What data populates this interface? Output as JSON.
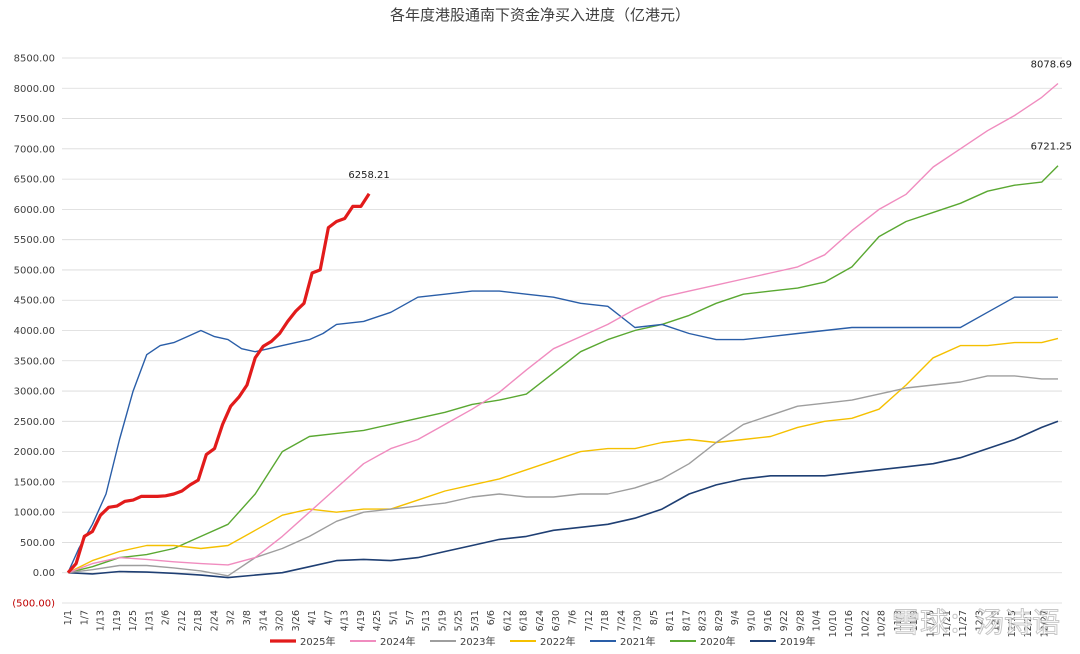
{
  "watermark": "雪球：汤诗语",
  "chart_data": {
    "type": "line",
    "title": "各年度港股通南下资金净买入进度（亿港元）",
    "xlabel": "",
    "ylabel": "",
    "ylim": [
      -500,
      8500
    ],
    "ytick_labels": [
      "(500.00)",
      "0.00",
      "500.00",
      "1000.00",
      "1500.00",
      "2000.00",
      "2500.00",
      "3000.00",
      "3500.00",
      "4000.00",
      "4500.00",
      "5000.00",
      "5500.00",
      "6000.00",
      "6500.00",
      "7000.00",
      "7500.00",
      "8000.00",
      "8500.00"
    ],
    "xtick_labels": [
      "1/1",
      "1/7",
      "1/13",
      "1/19",
      "1/25",
      "1/31",
      "2/6",
      "2/12",
      "2/18",
      "2/24",
      "3/2",
      "3/8",
      "3/14",
      "3/20",
      "3/26",
      "4/1",
      "4/7",
      "4/13",
      "4/19",
      "4/25",
      "5/1",
      "5/7",
      "5/13",
      "5/19",
      "5/25",
      "5/31",
      "6/6",
      "6/12",
      "6/18",
      "6/24",
      "6/30",
      "7/6",
      "7/12",
      "7/18",
      "7/24",
      "7/30",
      "8/5",
      "8/11",
      "8/17",
      "8/23",
      "8/29",
      "9/4",
      "9/10",
      "9/16",
      "9/22",
      "9/28",
      "10/4",
      "10/10",
      "10/16",
      "10/22",
      "10/28",
      "11/3",
      "11/9",
      "11/15",
      "11/21",
      "11/27",
      "12/3",
      "12/9",
      "12/15",
      "12/21",
      "12/27"
    ],
    "grid": true,
    "legend_position": "bottom",
    "series": [
      {
        "name": "2025年",
        "color": "#e21b1b",
        "width": 3.2,
        "x": [
          1,
          4,
          7,
          10,
          13,
          16,
          19,
          22,
          25,
          28,
          31,
          34,
          37,
          40,
          43,
          46,
          49,
          52,
          55,
          58,
          61,
          64,
          67,
          70,
          73,
          76,
          79,
          82,
          85,
          88,
          91,
          94,
          97,
          100,
          103,
          106,
          109,
          112
        ],
        "y": [
          0,
          150,
          600,
          680,
          950,
          1080,
          1100,
          1180,
          1200,
          1260,
          1260,
          1260,
          1270,
          1300,
          1350,
          1450,
          1530,
          1950,
          2050,
          2450,
          2750,
          2900,
          3100,
          3550,
          3740,
          3820,
          3950,
          4150,
          4320,
          4450,
          4950,
          5000,
          5700,
          5800,
          5850,
          6050,
          6050,
          6258.21
        ],
        "end_label": "6258.21"
      },
      {
        "name": "2024年",
        "color": "#f08cbf",
        "width": 1.4,
        "x": [
          1,
          10,
          20,
          30,
          40,
          50,
          60,
          70,
          80,
          90,
          100,
          110,
          120,
          130,
          140,
          150,
          160,
          170,
          180,
          190,
          200,
          210,
          220,
          230,
          240,
          250,
          260,
          270,
          280,
          290,
          300,
          310,
          320,
          330,
          340,
          350,
          360,
          366
        ],
        "y": [
          0,
          150,
          250,
          220,
          180,
          150,
          130,
          250,
          600,
          1000,
          1400,
          1800,
          2050,
          2200,
          2450,
          2700,
          2980,
          3350,
          3700,
          3900,
          4100,
          4350,
          4550,
          4650,
          4750,
          4850,
          4950,
          5050,
          5250,
          5650,
          6000,
          6250,
          6700,
          7000,
          7300,
          7550,
          7850,
          8078.69
        ],
        "end_label": "8078.69"
      },
      {
        "name": "2023年",
        "color": "#9e9e9e",
        "width": 1.4,
        "x": [
          1,
          10,
          20,
          30,
          40,
          50,
          60,
          70,
          80,
          90,
          100,
          110,
          120,
          130,
          140,
          150,
          160,
          170,
          180,
          190,
          200,
          210,
          220,
          230,
          240,
          250,
          260,
          270,
          280,
          290,
          300,
          310,
          320,
          330,
          340,
          350,
          360,
          366
        ],
        "y": [
          0,
          50,
          120,
          120,
          80,
          30,
          -50,
          250,
          400,
          600,
          850,
          1000,
          1050,
          1100,
          1150,
          1250,
          1300,
          1250,
          1250,
          1300,
          1300,
          1400,
          1550,
          1800,
          2150,
          2450,
          2600,
          2750,
          2800,
          2850,
          2950,
          3050,
          3100,
          3150,
          3250,
          3250,
          3200,
          3200
        ]
      },
      {
        "name": "2022年",
        "color": "#f5c000",
        "width": 1.4,
        "x": [
          1,
          10,
          20,
          30,
          40,
          50,
          60,
          70,
          80,
          90,
          100,
          110,
          120,
          130,
          140,
          150,
          160,
          170,
          180,
          190,
          200,
          210,
          220,
          230,
          240,
          250,
          260,
          270,
          280,
          290,
          300,
          310,
          320,
          330,
          340,
          350,
          360,
          366
        ],
        "y": [
          0,
          200,
          350,
          450,
          450,
          400,
          450,
          700,
          950,
          1050,
          1000,
          1050,
          1050,
          1200,
          1350,
          1450,
          1550,
          1700,
          1850,
          2000,
          2050,
          2050,
          2150,
          2200,
          2150,
          2200,
          2250,
          2400,
          2500,
          2550,
          2700,
          3100,
          3550,
          3750,
          3750,
          3800,
          3800,
          3870
        ]
      },
      {
        "name": "2021年",
        "color": "#2a5ea8",
        "width": 1.4,
        "x": [
          1,
          5,
          10,
          15,
          20,
          25,
          30,
          35,
          40,
          45,
          50,
          55,
          60,
          65,
          70,
          75,
          80,
          85,
          90,
          95,
          100,
          110,
          120,
          130,
          140,
          150,
          160,
          170,
          180,
          190,
          200,
          210,
          220,
          230,
          240,
          250,
          260,
          270,
          280,
          290,
          300,
          310,
          320,
          330,
          340,
          350,
          360,
          366
        ],
        "y": [
          0,
          400,
          800,
          1300,
          2200,
          3000,
          3600,
          3750,
          3800,
          3900,
          4000,
          3900,
          3850,
          3700,
          3650,
          3700,
          3750,
          3800,
          3850,
          3950,
          4100,
          4150,
          4300,
          4550,
          4600,
          4650,
          4650,
          4600,
          4550,
          4450,
          4400,
          4050,
          4100,
          3950,
          3850,
          3850,
          3900,
          3950,
          4000,
          4050,
          4050,
          4050,
          4050,
          4050,
          4300,
          4550,
          4550,
          4550
        ]
      },
      {
        "name": "2020年",
        "color": "#5aa832",
        "width": 1.4,
        "x": [
          1,
          10,
          20,
          30,
          40,
          50,
          60,
          70,
          80,
          90,
          100,
          110,
          120,
          130,
          140,
          150,
          160,
          170,
          180,
          190,
          200,
          210,
          220,
          230,
          240,
          250,
          260,
          270,
          280,
          290,
          300,
          310,
          320,
          330,
          340,
          350,
          360,
          366
        ],
        "y": [
          0,
          100,
          250,
          300,
          400,
          600,
          800,
          1300,
          2000,
          2250,
          2300,
          2350,
          2450,
          2550,
          2650,
          2780,
          2850,
          2950,
          3300,
          3650,
          3850,
          4000,
          4100,
          4250,
          4450,
          4600,
          4650,
          4700,
          4800,
          5050,
          5550,
          5800,
          5950,
          6100,
          6300,
          6400,
          6450,
          6721.25
        ],
        "end_label": "6721.25"
      },
      {
        "name": "2019年",
        "color": "#1f3f73",
        "width": 1.6,
        "x": [
          1,
          10,
          20,
          30,
          40,
          50,
          60,
          70,
          80,
          90,
          100,
          110,
          120,
          130,
          140,
          150,
          160,
          170,
          180,
          190,
          200,
          210,
          220,
          230,
          240,
          250,
          260,
          270,
          280,
          290,
          300,
          310,
          320,
          330,
          340,
          350,
          360,
          366
        ],
        "y": [
          0,
          -20,
          20,
          10,
          -10,
          -40,
          -80,
          -40,
          0,
          100,
          200,
          220,
          200,
          250,
          350,
          450,
          550,
          600,
          700,
          750,
          800,
          900,
          1050,
          1300,
          1450,
          1550,
          1600,
          1600,
          1600,
          1650,
          1700,
          1750,
          1800,
          1900,
          2050,
          2200,
          2400,
          2500
        ]
      }
    ]
  }
}
